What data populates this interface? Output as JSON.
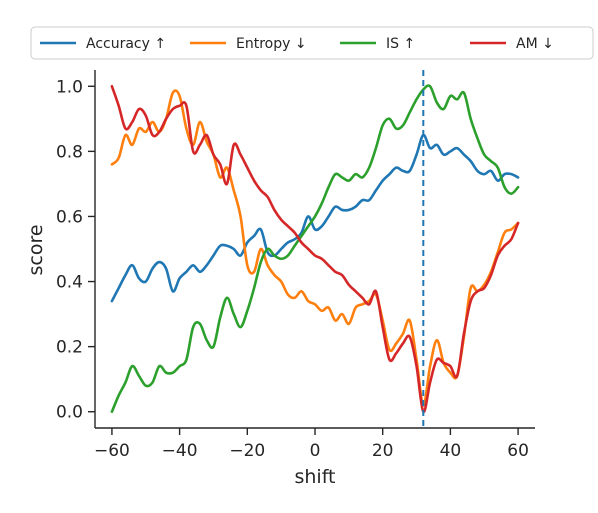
{
  "chart_data": {
    "type": "line",
    "xlabel": "shift",
    "ylabel": "score",
    "xlim": [
      -65,
      65
    ],
    "ylim": [
      -0.05,
      1.05
    ],
    "xticks": [
      -60,
      -40,
      -20,
      0,
      20,
      40,
      60
    ],
    "xtick_labels": [
      "−60",
      "−40",
      "−20",
      "0",
      "20",
      "40",
      "60"
    ],
    "yticks": [
      0.0,
      0.2,
      0.4,
      0.6,
      0.8,
      1.0
    ],
    "ytick_labels": [
      "0.0",
      "0.2",
      "0.4",
      "0.6",
      "0.8",
      "1.0"
    ],
    "grid": false,
    "legend_placement": "top",
    "vline": {
      "x": 32,
      "color": "#1f77b4",
      "style": "dashed"
    },
    "x": [
      -60,
      -58,
      -56,
      -54,
      -52,
      -50,
      -48,
      -46,
      -44,
      -42,
      -40,
      -38,
      -36,
      -34,
      -32,
      -30,
      -28,
      -26,
      -24,
      -22,
      -20,
      -18,
      -16,
      -14,
      -12,
      -10,
      -8,
      -6,
      -4,
      -2,
      0,
      2,
      4,
      6,
      8,
      10,
      12,
      14,
      16,
      18,
      20,
      22,
      24,
      26,
      28,
      30,
      32,
      34,
      36,
      38,
      40,
      42,
      44,
      46,
      48,
      50,
      52,
      54,
      56,
      58,
      60
    ],
    "series": [
      {
        "name": "Accuracy ↑",
        "color": "#1f77b4",
        "values": [
          0.34,
          0.38,
          0.42,
          0.45,
          0.41,
          0.4,
          0.44,
          0.46,
          0.44,
          0.37,
          0.41,
          0.43,
          0.45,
          0.43,
          0.45,
          0.48,
          0.51,
          0.51,
          0.5,
          0.48,
          0.52,
          0.54,
          0.56,
          0.49,
          0.48,
          0.5,
          0.52,
          0.53,
          0.55,
          0.6,
          0.56,
          0.57,
          0.6,
          0.63,
          0.62,
          0.62,
          0.63,
          0.65,
          0.65,
          0.68,
          0.71,
          0.73,
          0.75,
          0.74,
          0.74,
          0.79,
          0.85,
          0.81,
          0.82,
          0.79,
          0.8,
          0.81,
          0.79,
          0.77,
          0.74,
          0.73,
          0.74,
          0.71,
          0.73,
          0.73,
          0.72
        ]
      },
      {
        "name": "Entropy ↓",
        "color": "#ff7f0e",
        "values": [
          0.76,
          0.78,
          0.85,
          0.82,
          0.87,
          0.86,
          0.89,
          0.86,
          0.9,
          0.98,
          0.97,
          0.87,
          0.82,
          0.89,
          0.83,
          0.79,
          0.72,
          0.75,
          0.68,
          0.6,
          0.45,
          0.43,
          0.5,
          0.45,
          0.42,
          0.4,
          0.36,
          0.35,
          0.37,
          0.34,
          0.33,
          0.31,
          0.32,
          0.28,
          0.3,
          0.27,
          0.32,
          0.33,
          0.34,
          0.36,
          0.28,
          0.19,
          0.21,
          0.24,
          0.28,
          0.16,
          0.02,
          0.14,
          0.22,
          0.15,
          0.12,
          0.11,
          0.23,
          0.38,
          0.37,
          0.39,
          0.43,
          0.49,
          0.55,
          0.56,
          0.58
        ]
      },
      {
        "name": "IS ↑",
        "color": "#2ca02c",
        "values": [
          0.0,
          0.05,
          0.09,
          0.14,
          0.11,
          0.08,
          0.09,
          0.14,
          0.12,
          0.12,
          0.14,
          0.16,
          0.26,
          0.27,
          0.22,
          0.2,
          0.29,
          0.35,
          0.3,
          0.26,
          0.31,
          0.38,
          0.46,
          0.5,
          0.48,
          0.47,
          0.48,
          0.51,
          0.54,
          0.57,
          0.6,
          0.64,
          0.69,
          0.73,
          0.72,
          0.71,
          0.73,
          0.72,
          0.75,
          0.81,
          0.88,
          0.9,
          0.87,
          0.88,
          0.92,
          0.96,
          0.99,
          1.0,
          0.95,
          0.93,
          0.97,
          0.96,
          0.98,
          0.9,
          0.84,
          0.79,
          0.77,
          0.75,
          0.69,
          0.67,
          0.69
        ]
      },
      {
        "name": "AM ↓",
        "color": "#d62728",
        "values": [
          1.0,
          0.94,
          0.87,
          0.89,
          0.93,
          0.91,
          0.85,
          0.86,
          0.9,
          0.93,
          0.94,
          0.94,
          0.8,
          0.82,
          0.85,
          0.79,
          0.76,
          0.7,
          0.82,
          0.79,
          0.75,
          0.71,
          0.68,
          0.66,
          0.62,
          0.59,
          0.57,
          0.55,
          0.52,
          0.5,
          0.48,
          0.47,
          0.45,
          0.43,
          0.42,
          0.39,
          0.37,
          0.35,
          0.33,
          0.37,
          0.26,
          0.16,
          0.18,
          0.21,
          0.23,
          0.14,
          0.0,
          0.09,
          0.16,
          0.15,
          0.14,
          0.11,
          0.24,
          0.34,
          0.37,
          0.38,
          0.42,
          0.48,
          0.51,
          0.53,
          0.58
        ]
      }
    ]
  }
}
